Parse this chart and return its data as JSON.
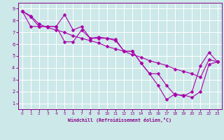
{
  "xlabel": "Windchill (Refroidissement éolien,°C)",
  "line_color": "#aa00aa",
  "bg_color": "#cce8e8",
  "grid_color": "#ffffff",
  "xlim": [
    -0.5,
    23.5
  ],
  "ylim": [
    0.5,
    9.5
  ],
  "xticks": [
    0,
    1,
    2,
    3,
    4,
    5,
    6,
    7,
    8,
    9,
    10,
    11,
    12,
    13,
    14,
    15,
    16,
    17,
    18,
    19,
    20,
    21,
    22,
    23
  ],
  "yticks": [
    1,
    2,
    3,
    4,
    5,
    6,
    7,
    8,
    9
  ],
  "line1_x": [
    0,
    1,
    2,
    3,
    4,
    5,
    6,
    7,
    8,
    9,
    10,
    11,
    12,
    13,
    14,
    15,
    16,
    17,
    18,
    19,
    20,
    21,
    22,
    23
  ],
  "line1_y": [
    8.8,
    8.4,
    7.7,
    7.4,
    7.2,
    7.0,
    6.7,
    6.5,
    6.3,
    6.1,
    5.8,
    5.6,
    5.4,
    5.1,
    4.9,
    4.6,
    4.4,
    4.2,
    3.9,
    3.7,
    3.5,
    3.2,
    4.7,
    4.5
  ],
  "line2_x": [
    0,
    1,
    2,
    3,
    4,
    5,
    6,
    7,
    8,
    9,
    10,
    11,
    12,
    13,
    14,
    15,
    16,
    17,
    18,
    19,
    20,
    21,
    22,
    23
  ],
  "line2_y": [
    8.8,
    8.3,
    7.5,
    7.5,
    7.5,
    8.5,
    7.2,
    7.5,
    6.5,
    6.6,
    6.5,
    6.4,
    5.4,
    5.4,
    4.4,
    3.5,
    2.5,
    1.3,
    1.8,
    1.6,
    2.0,
    4.2,
    5.3,
    4.5
  ],
  "line3_x": [
    0,
    1,
    2,
    3,
    4,
    5,
    6,
    7,
    8,
    9,
    10,
    11,
    12,
    13,
    14,
    15,
    16,
    17,
    18,
    19,
    20,
    21,
    22,
    23
  ],
  "line3_y": [
    8.8,
    7.5,
    7.5,
    7.5,
    7.5,
    6.2,
    6.2,
    7.2,
    6.5,
    6.5,
    6.5,
    6.3,
    5.4,
    5.4,
    4.4,
    3.5,
    3.5,
    2.5,
    1.7,
    1.7,
    1.5,
    2.0,
    4.3,
    4.5
  ]
}
